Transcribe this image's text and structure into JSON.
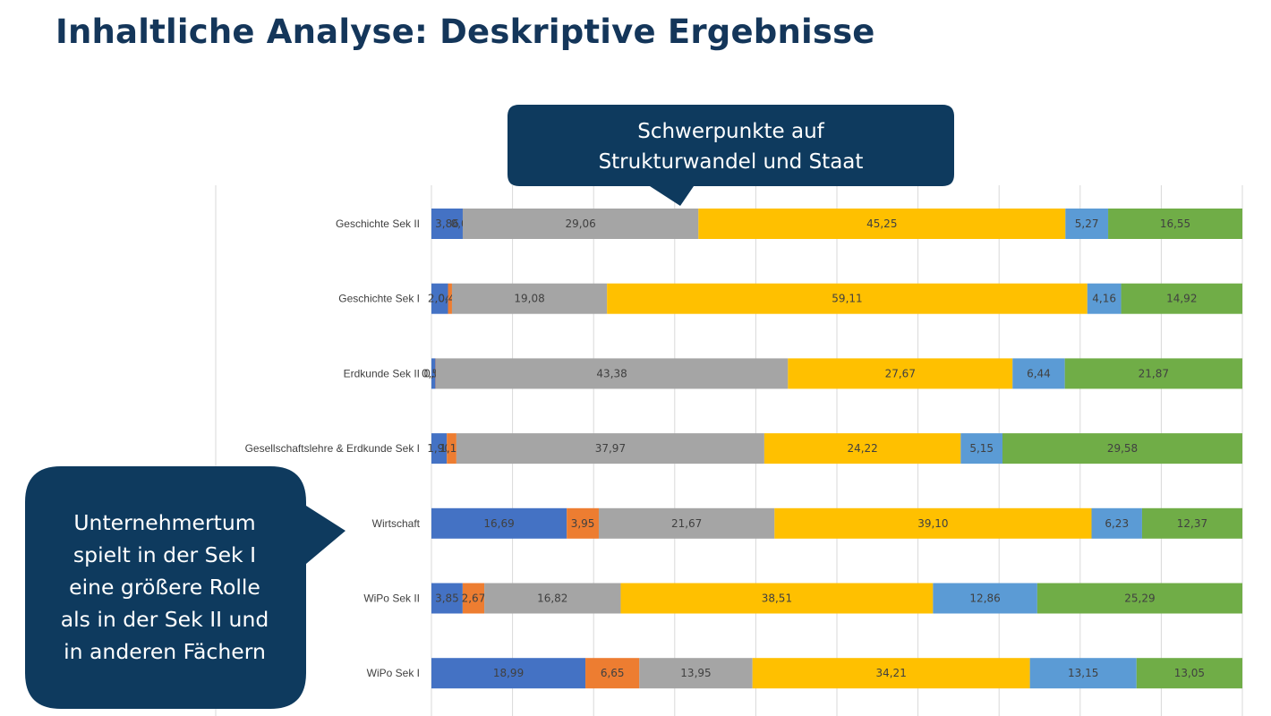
{
  "title": "Inhaltliche Analyse: Deskriptive Ergebnisse",
  "callouts": {
    "top": {
      "lines": [
        "Schwerpunkte auf",
        "Strukturwandel und Staat"
      ],
      "color": "#0e3a5e"
    },
    "left": {
      "lines": [
        "Unternehmertum",
        "spielt in der Sek I",
        "eine größere Rolle",
        "als in der Sek II und",
        "in anderen Fächern"
      ],
      "color": "#0e3a5e"
    }
  },
  "chart_data": {
    "type": "bar",
    "orientation": "horizontal",
    "stacked": "100%",
    "grid": true,
    "legend": "none",
    "categories": [
      "Geschichte Sek II",
      "Geschichte Sek I",
      "Erdkunde Sek II",
      "Gesellschaftslehre & Erdkunde Sek I",
      "Wirtschaft",
      "WiPo Sek II",
      "WiPo Sek I"
    ],
    "series": [
      {
        "color": "#4472c4",
        "values": [
          3.86,
          2.04,
          0.5,
          1.9,
          16.69,
          3.85,
          18.99
        ],
        "labels": [
          "3,86",
          "2,04",
          "0,50",
          "1,90",
          "16,69",
          "3,85",
          "18,99"
        ]
      },
      {
        "color": "#ed7d31",
        "values": [
          0.0,
          0.49,
          0.04,
          1.18,
          3.95,
          2.67,
          6.65
        ],
        "labels": [
          "0,00",
          "0,49",
          "0,04",
          "1,18",
          "3,95",
          "2,67",
          "6,65"
        ]
      },
      {
        "color": "#a5a5a5",
        "values": [
          29.06,
          19.08,
          43.38,
          37.97,
          21.67,
          16.82,
          13.95
        ],
        "labels": [
          "29,06",
          "19,08",
          "43,38",
          "37,97",
          "21,67",
          "16,82",
          "13,95"
        ]
      },
      {
        "color": "#ffc000",
        "values": [
          45.25,
          59.11,
          27.67,
          24.22,
          39.1,
          38.51,
          34.21
        ],
        "labels": [
          "45,25",
          "59,11",
          "27,67",
          "24,22",
          "39,10",
          "38,51",
          "34,21"
        ]
      },
      {
        "color": "#5b9bd5",
        "values": [
          5.27,
          4.16,
          6.44,
          5.15,
          6.23,
          12.86,
          13.15
        ],
        "labels": [
          "5,27",
          "4,16",
          "6,44",
          "5,15",
          "6,23",
          "12,86",
          "13,15"
        ]
      },
      {
        "color": "#70ad47",
        "values": [
          16.55,
          14.92,
          21.87,
          29.58,
          12.37,
          25.29,
          13.05
        ],
        "labels": [
          "16,55",
          "14,92",
          "21,87",
          "29,58",
          "12,37",
          "25,29",
          "13,05"
        ]
      }
    ]
  }
}
